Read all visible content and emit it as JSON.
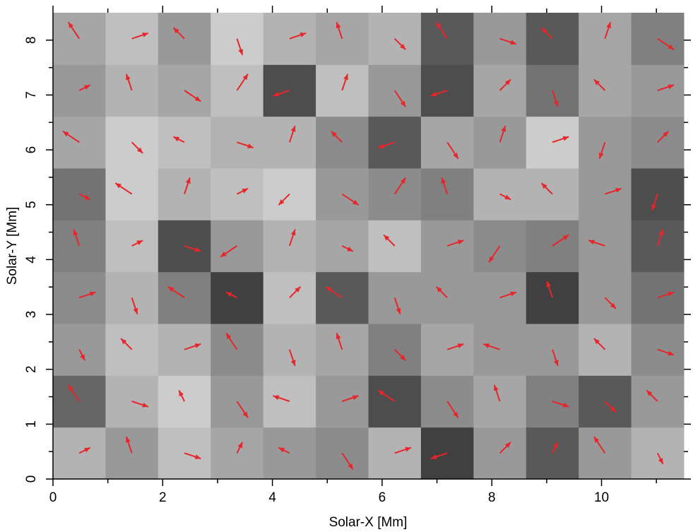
{
  "chart_data": {
    "type": "quiver",
    "xlabel": "Solar-X [Mm]",
    "ylabel": "Solar-Y [Mm]",
    "xlim": [
      0,
      11.5
    ],
    "ylim": [
      0,
      8.5
    ],
    "xticks": [
      0,
      2,
      4,
      6,
      8,
      10
    ],
    "yticks": [
      0,
      1,
      2,
      3,
      4,
      5,
      6,
      7,
      8
    ],
    "xminorticks": [
      1,
      3,
      5,
      7,
      9,
      11
    ],
    "yminorticks": [
      0.5,
      1.5,
      2.5,
      3.5,
      4.5,
      5.5,
      6.5,
      7.5
    ],
    "colormap": "gray",
    "arrow_color": "#e8252b",
    "z": [
      [
        0.7,
        0.6,
        0.75,
        0.65,
        0.6,
        0.55,
        0.7,
        0.25,
        0.6,
        0.35,
        0.6,
        0.7
      ],
      [
        0.4,
        0.7,
        0.8,
        0.6,
        0.75,
        0.6,
        0.3,
        0.55,
        0.65,
        0.5,
        0.35,
        0.6
      ],
      [
        0.6,
        0.75,
        0.7,
        0.55,
        0.7,
        0.65,
        0.5,
        0.65,
        0.6,
        0.6,
        0.7,
        0.55
      ],
      [
        0.55,
        0.7,
        0.5,
        0.25,
        0.75,
        0.35,
        0.6,
        0.6,
        0.6,
        0.25,
        0.6,
        0.45
      ],
      [
        0.5,
        0.75,
        0.3,
        0.6,
        0.7,
        0.65,
        0.75,
        0.6,
        0.55,
        0.5,
        0.6,
        0.35
      ],
      [
        0.45,
        0.8,
        0.7,
        0.75,
        0.8,
        0.6,
        0.55,
        0.5,
        0.7,
        0.7,
        0.6,
        0.3
      ],
      [
        0.65,
        0.8,
        0.75,
        0.7,
        0.7,
        0.55,
        0.35,
        0.65,
        0.6,
        0.8,
        0.6,
        0.55
      ],
      [
        0.6,
        0.7,
        0.65,
        0.75,
        0.3,
        0.75,
        0.6,
        0.3,
        0.65,
        0.45,
        0.65,
        0.6
      ],
      [
        0.65,
        0.75,
        0.6,
        0.8,
        0.7,
        0.65,
        0.7,
        0.35,
        0.6,
        0.35,
        0.65,
        0.5
      ]
    ],
    "u": [
      [
        0.2,
        -0.1,
        0.3,
        0.1,
        -0.2,
        0.2,
        0.3,
        -0.3,
        0.2,
        0.1,
        -0.2,
        0.1
      ],
      [
        -0.2,
        0.3,
        -0.1,
        0.2,
        -0.3,
        0.3,
        -0.3,
        0.2,
        -0.1,
        0.3,
        0.2,
        -0.2
      ],
      [
        0.1,
        -0.2,
        0.3,
        -0.2,
        0.1,
        -0.1,
        0.2,
        0.3,
        -0.3,
        0.1,
        -0.2,
        0.3
      ],
      [
        0.3,
        0.1,
        -0.3,
        -0.2,
        0.2,
        -0.3,
        0.1,
        -0.2,
        0.3,
        -0.1,
        0.2,
        0.3
      ],
      [
        -0.1,
        0.2,
        0.3,
        -0.3,
        0.1,
        0.2,
        -0.2,
        0.3,
        -0.2,
        0.3,
        -0.3,
        0.1
      ],
      [
        0.2,
        -0.3,
        0.1,
        0.2,
        -0.2,
        0.3,
        0.2,
        -0.1,
        0.2,
        -0.2,
        0.3,
        -0.1
      ],
      [
        -0.3,
        0.2,
        -0.2,
        0.3,
        0.1,
        -0.2,
        -0.3,
        0.2,
        0.1,
        0.3,
        -0.1,
        0.2
      ],
      [
        0.2,
        -0.1,
        0.3,
        0.2,
        -0.3,
        0.1,
        0.2,
        -0.3,
        0.2,
        0.1,
        -0.2,
        0.3
      ],
      [
        -0.2,
        0.3,
        -0.2,
        0.1,
        0.3,
        -0.1,
        0.2,
        -0.2,
        0.3,
        -0.2,
        0.1,
        0.3
      ]
    ],
    "v": [
      [
        0.1,
        0.3,
        -0.1,
        0.2,
        0.1,
        -0.3,
        0.1,
        -0.1,
        0.2,
        0.2,
        0.3,
        -0.2
      ],
      [
        0.3,
        -0.1,
        0.2,
        -0.3,
        0.1,
        0.1,
        0.2,
        -0.3,
        0.3,
        -0.1,
        -0.2,
        0.2
      ],
      [
        -0.2,
        0.2,
        0.1,
        0.3,
        -0.3,
        0.3,
        -0.2,
        0.1,
        0.1,
        -0.3,
        0.2,
        -0.1
      ],
      [
        0.1,
        -0.3,
        0.2,
        0.1,
        0.2,
        0.2,
        -0.3,
        0.2,
        0.1,
        0.3,
        -0.2,
        0.1
      ],
      [
        0.3,
        0.1,
        -0.1,
        -0.2,
        0.3,
        -0.1,
        0.2,
        0.1,
        -0.3,
        0.2,
        0.1,
        0.3
      ],
      [
        -0.1,
        0.2,
        0.3,
        0.1,
        -0.2,
        -0.2,
        0.3,
        0.3,
        -0.1,
        0.2,
        0.1,
        -0.3
      ],
      [
        0.2,
        -0.2,
        0.1,
        -0.1,
        0.3,
        0.2,
        -0.1,
        -0.3,
        0.3,
        0.1,
        -0.3,
        0.2
      ],
      [
        0.1,
        0.3,
        -0.2,
        0.3,
        -0.1,
        0.3,
        -0.3,
        -0.1,
        0.2,
        -0.3,
        0.2,
        0.1
      ],
      [
        0.3,
        0.1,
        0.2,
        -0.3,
        0.1,
        0.3,
        -0.2,
        0.3,
        -0.1,
        0.2,
        0.3,
        -0.2
      ]
    ]
  }
}
